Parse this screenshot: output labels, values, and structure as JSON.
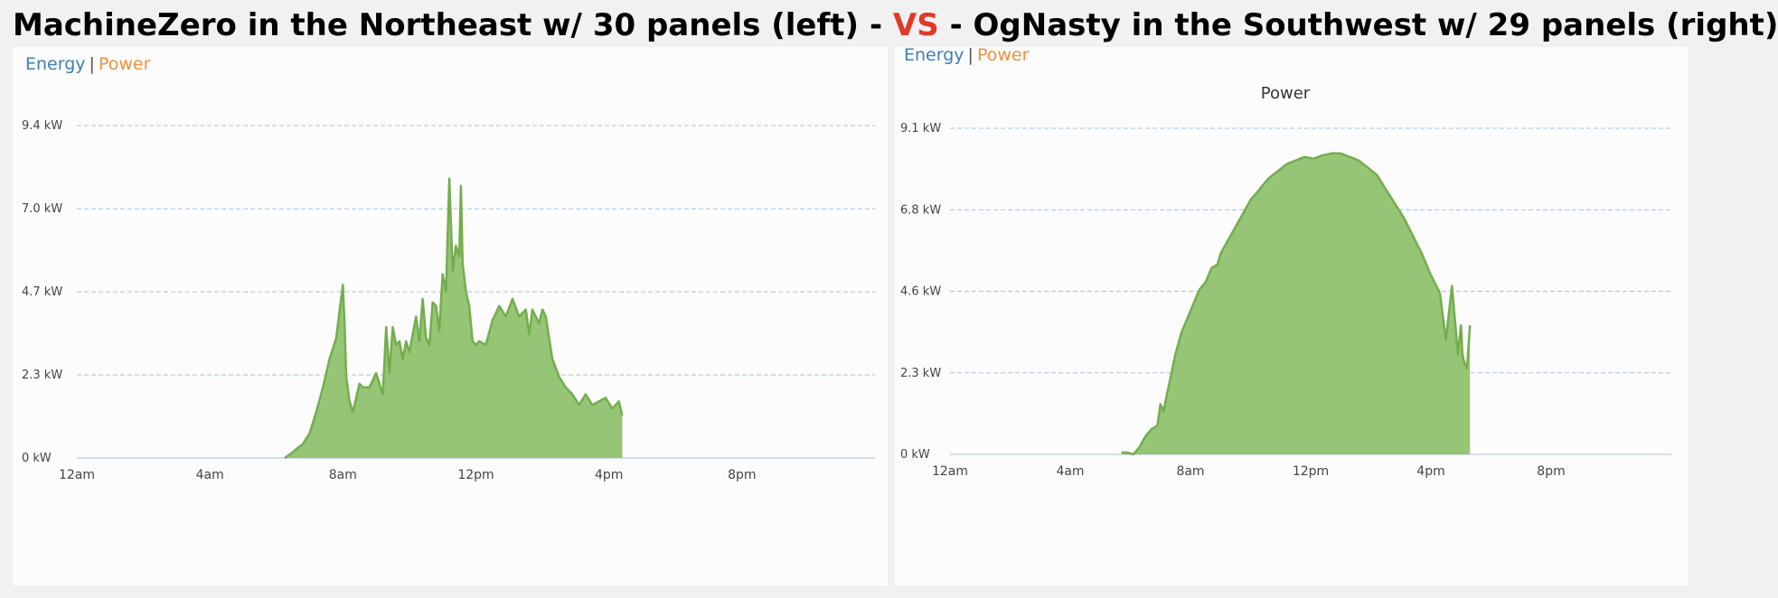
{
  "headline": {
    "left_text": "MachineZero in the Northeast w/ 30 panels (left)",
    "sep1": "-",
    "vs": "VS",
    "sep2": "-",
    "right_text": "OgNasty in the Southwest w/ 29 panels (right)"
  },
  "colors": {
    "fill": "#96c575",
    "stroke": "#74ad4e",
    "grid": "#a9bfd6",
    "axis_text": "#444444",
    "vs": "#e03a26",
    "energy": "#3f7eb6",
    "power": "#f0903c"
  },
  "chart_data": [
    {
      "type": "area",
      "legend": {
        "energy": "Energy",
        "separator": "|",
        "power": "Power"
      },
      "title": "",
      "y_ticks": [
        "0 kW",
        "2.3 kW",
        "4.7 kW",
        "7.0 kW",
        "9.4 kW"
      ],
      "x_ticks": [
        "12am",
        "4am",
        "8am",
        "12pm",
        "4pm",
        "8pm"
      ],
      "xlim": [
        0,
        24
      ],
      "ylim": [
        0,
        9.4
      ],
      "grid": true,
      "x": [
        6.25,
        6.4,
        6.6,
        6.8,
        7.0,
        7.2,
        7.4,
        7.6,
        7.8,
        8.0,
        8.05,
        8.1,
        8.2,
        8.3,
        8.4,
        8.5,
        8.6,
        8.8,
        9.0,
        9.2,
        9.3,
        9.4,
        9.5,
        9.6,
        9.7,
        9.8,
        9.9,
        10.0,
        10.1,
        10.2,
        10.3,
        10.4,
        10.5,
        10.6,
        10.7,
        10.8,
        10.9,
        11.0,
        11.1,
        11.2,
        11.3,
        11.4,
        11.5,
        11.55,
        11.6,
        11.7,
        11.8,
        11.9,
        12.0,
        12.1,
        12.3,
        12.5,
        12.7,
        12.9,
        13.1,
        13.3,
        13.5,
        13.6,
        13.7,
        13.9,
        14.0,
        14.1,
        14.2,
        14.3,
        14.5,
        14.7,
        14.9,
        15.1,
        15.3,
        15.5,
        15.7,
        15.9,
        16.1,
        16.3,
        16.4
      ],
      "y": [
        0.0,
        0.1,
        0.25,
        0.4,
        0.7,
        1.3,
        2.0,
        2.8,
        3.4,
        4.9,
        3.8,
        2.3,
        1.6,
        1.3,
        1.7,
        2.1,
        2.0,
        2.0,
        2.4,
        1.8,
        3.7,
        2.4,
        3.7,
        3.2,
        3.3,
        2.8,
        3.3,
        3.0,
        3.5,
        4.0,
        3.3,
        4.5,
        3.4,
        3.2,
        4.4,
        4.3,
        3.6,
        5.2,
        4.7,
        7.9,
        5.3,
        6.0,
        5.7,
        7.7,
        5.5,
        4.7,
        4.3,
        3.3,
        3.2,
        3.3,
        3.2,
        3.9,
        4.3,
        4.0,
        4.5,
        4.0,
        4.2,
        3.5,
        4.2,
        3.8,
        4.2,
        4.0,
        3.4,
        2.8,
        2.3,
        2.0,
        1.8,
        1.5,
        1.8,
        1.5,
        1.6,
        1.7,
        1.4,
        1.6,
        1.2
      ]
    },
    {
      "type": "area",
      "legend": {
        "energy": "Energy",
        "separator": "|",
        "power": "Power"
      },
      "title": "Power",
      "y_ticks": [
        "0 kW",
        "2.3 kW",
        "4.6 kW",
        "6.8 kW",
        "9.1 kW"
      ],
      "x_ticks": [
        "12am",
        "4am",
        "8am",
        "12pm",
        "4pm",
        "8pm"
      ],
      "xlim": [
        0,
        24
      ],
      "ylim": [
        0,
        9.1
      ],
      "grid": true,
      "x": [
        5.7,
        5.9,
        6.1,
        6.3,
        6.5,
        6.7,
        6.9,
        7.0,
        7.1,
        7.3,
        7.5,
        7.7,
        7.9,
        8.1,
        8.3,
        8.5,
        8.7,
        8.9,
        9.0,
        9.2,
        9.4,
        9.6,
        9.8,
        10.0,
        10.3,
        10.6,
        10.9,
        11.2,
        11.5,
        11.8,
        12.1,
        12.4,
        12.7,
        13.0,
        13.3,
        13.6,
        13.9,
        14.2,
        14.5,
        14.8,
        15.1,
        15.4,
        15.7,
        16.0,
        16.3,
        16.5,
        16.7,
        16.9,
        17.0,
        17.05,
        17.1,
        17.2,
        17.3
      ],
      "y": [
        0.05,
        0.05,
        0.0,
        0.2,
        0.5,
        0.7,
        0.8,
        1.4,
        1.2,
        2.0,
        2.8,
        3.4,
        3.8,
        4.2,
        4.6,
        4.8,
        5.2,
        5.3,
        5.6,
        5.9,
        6.2,
        6.5,
        6.8,
        7.1,
        7.4,
        7.7,
        7.9,
        8.1,
        8.2,
        8.3,
        8.25,
        8.35,
        8.4,
        8.4,
        8.3,
        8.2,
        8.0,
        7.8,
        7.4,
        7.0,
        6.6,
        6.1,
        5.6,
        5.0,
        4.5,
        3.2,
        4.7,
        2.8,
        3.6,
        2.8,
        2.6,
        2.4,
        3.6
      ]
    }
  ]
}
